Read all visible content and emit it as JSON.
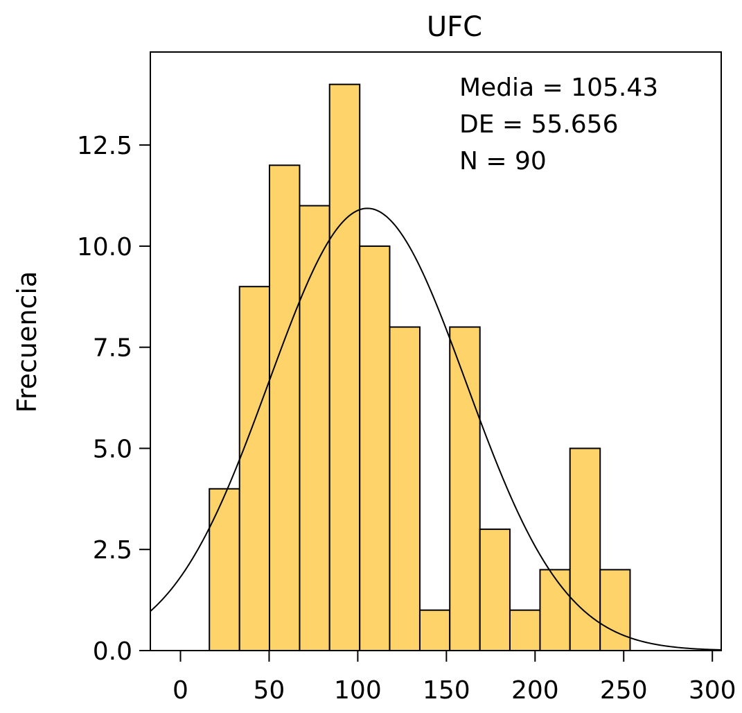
{
  "chart_data": {
    "type": "bar",
    "title": "UFC",
    "xlabel": "",
    "ylabel": "Frecuencia",
    "bin_edges": [
      16.3,
      33.3,
      50.2,
      67.2,
      84.1,
      101.1,
      118.0,
      135.0,
      151.9,
      168.9,
      185.8,
      202.8,
      219.7,
      236.7,
      253.6
    ],
    "bin_edges_note": "",
    "values": [
      4,
      9,
      12,
      11,
      14,
      10,
      8,
      1,
      8,
      3,
      1,
      2,
      5,
      2
    ],
    "xlim": [
      -17,
      305
    ],
    "ylim": [
      0,
      14.8
    ],
    "xticks": [
      0,
      50,
      100,
      150,
      200,
      250,
      300
    ],
    "xtick_labels": [
      "0",
      "50",
      "100",
      "150",
      "200",
      "250",
      "300"
    ],
    "yticks": [
      0,
      2.5,
      5,
      7.5,
      10,
      12.5
    ],
    "ytick_labels": [
      "0.0",
      "2.5",
      "5.0",
      "7.5",
      "10.0",
      "12.5"
    ],
    "normal_curve": {
      "mean": 105.43,
      "sd": 55.656,
      "n": 90
    },
    "annotations": {
      "mean_label": "Media = 105.43",
      "sd_label": "DE = 55.656",
      "n_label": "N = 90"
    },
    "grid": false,
    "colors": {
      "bar_fill": "#FDD36A",
      "bar_stroke": "#000000",
      "curve": "#000000",
      "frame": "#000000"
    }
  }
}
